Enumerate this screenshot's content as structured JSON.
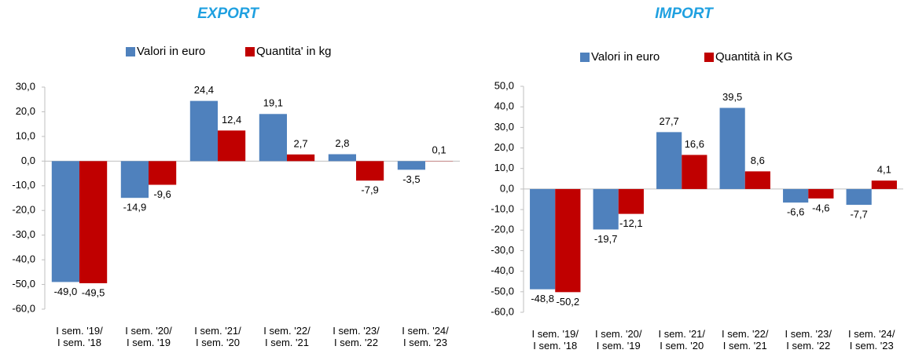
{
  "chart_data": [
    {
      "type": "bar",
      "title": "EXPORT",
      "categories": [
        "I sem. '19/\nI sem. '18",
        "I sem. '20/\nI sem. '19",
        "I sem. '21/\nI sem. '20",
        "I sem. '22/\nI sem. '21",
        "I sem. '23/\nI sem. '22",
        "I sem. '24/\nI sem. '23"
      ],
      "series": [
        {
          "name": "Valori in euro",
          "color": "#4f81bd",
          "values": [
            -49.0,
            -14.9,
            24.4,
            19.1,
            2.8,
            -3.5
          ],
          "value_labels": [
            "-49,0",
            "-14,9",
            "24,4",
            "19,1",
            "2,8",
            "-3,5"
          ]
        },
        {
          "name": "Quantita' in kg",
          "color": "#c00000",
          "values": [
            -49.5,
            -9.6,
            12.4,
            2.7,
            -7.9,
            0.1
          ],
          "value_labels": [
            "-49,5",
            "-9,6",
            "12,4",
            "2,7",
            "-7,9",
            "0,1"
          ]
        }
      ],
      "ylim": [
        -60,
        30
      ],
      "yticks": [
        {
          "value": 30,
          "label": "30,0"
        },
        {
          "value": 20,
          "label": "20,0"
        },
        {
          "value": 10,
          "label": "10,0"
        },
        {
          "value": 0,
          "label": "0,0"
        },
        {
          "value": -10,
          "label": "-10,0"
        },
        {
          "value": -20,
          "label": "-20,0"
        },
        {
          "value": -30,
          "label": "-30,0"
        },
        {
          "value": -40,
          "label": "-40,0"
        },
        {
          "value": -50,
          "label": "-50,0"
        },
        {
          "value": -60,
          "label": "-60,0"
        }
      ],
      "grid": false,
      "legend": "top"
    },
    {
      "type": "bar",
      "title": "IMPORT",
      "categories": [
        "I sem. '19/\nI sem. '18",
        "I sem. '20/\nI sem. '19",
        "I sem. '21/\nI sem. '20",
        "I sem. '22/\nI sem. '21",
        "I sem. '23/\nI sem. '22",
        "I sem. '24/\nI sem. '23"
      ],
      "series": [
        {
          "name": "Valori in euro",
          "color": "#4f81bd",
          "values": [
            -48.8,
            -19.7,
            27.7,
            39.5,
            -6.6,
            -7.7
          ],
          "value_labels": [
            "-48,8",
            "-19,7",
            "27,7",
            "39,5",
            "-6,6",
            "-7,7"
          ]
        },
        {
          "name": "Quantità in KG",
          "color": "#c00000",
          "values": [
            -50.2,
            -12.1,
            16.6,
            8.6,
            -4.6,
            4.1
          ],
          "value_labels": [
            "-50,2",
            "-12,1",
            "16,6",
            "8,6",
            "-4,6",
            "4,1"
          ]
        }
      ],
      "ylim": [
        -60,
        50
      ],
      "yticks": [
        {
          "value": 50,
          "label": "50,0"
        },
        {
          "value": 40,
          "label": "40,0"
        },
        {
          "value": 30,
          "label": "30,0"
        },
        {
          "value": 20,
          "label": "20,0"
        },
        {
          "value": 10,
          "label": "10,0"
        },
        {
          "value": 0,
          "label": "0,0"
        },
        {
          "value": -10,
          "label": "-10,0"
        },
        {
          "value": -20,
          "label": "-20,0"
        },
        {
          "value": -30,
          "label": "-30,0"
        },
        {
          "value": -40,
          "label": "-40,0"
        },
        {
          "value": -50,
          "label": "-50,0"
        },
        {
          "value": -60,
          "label": "-60,0"
        }
      ],
      "grid": false,
      "legend": "top"
    }
  ]
}
